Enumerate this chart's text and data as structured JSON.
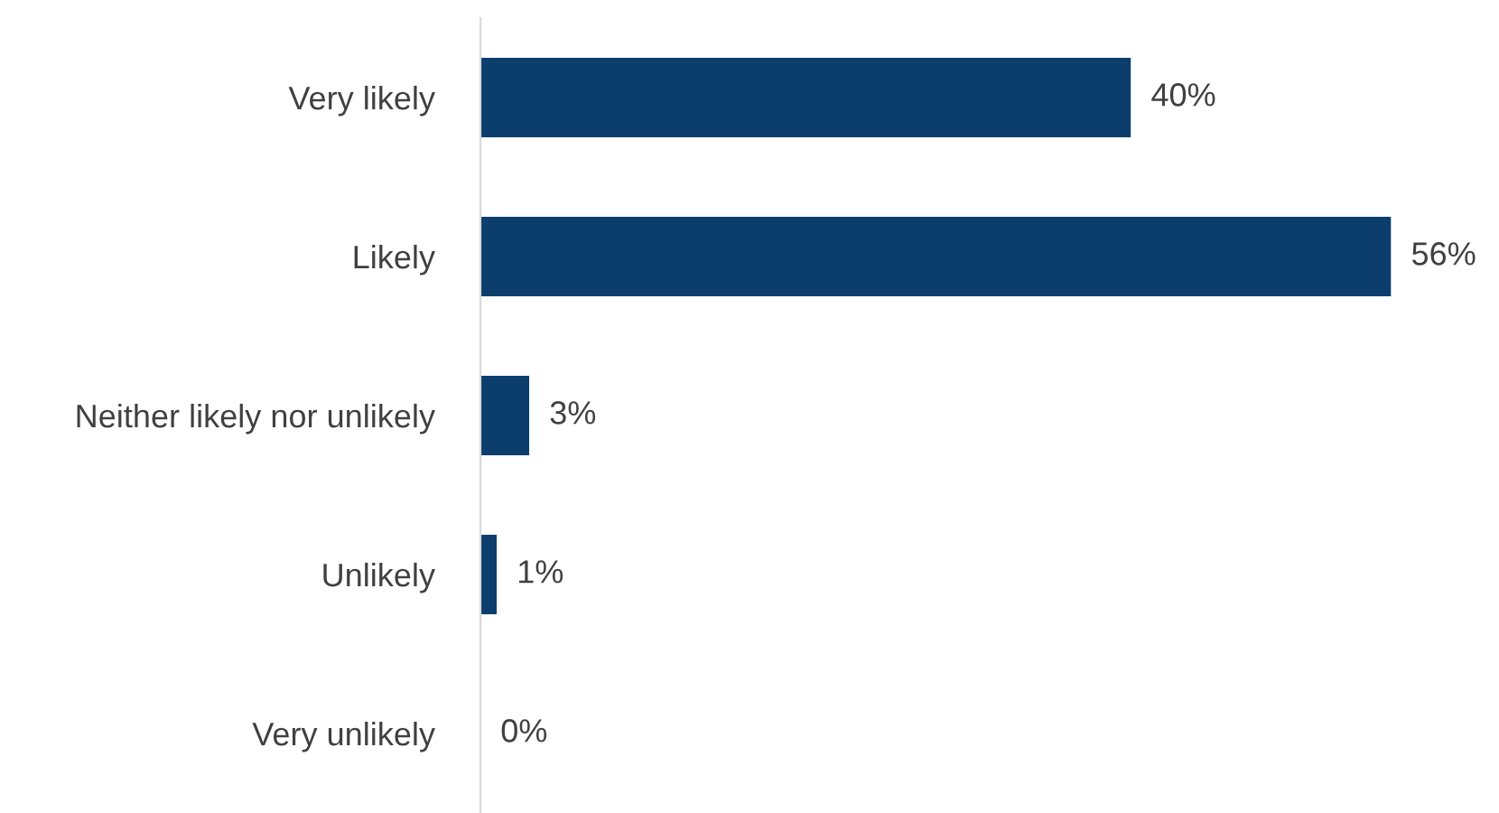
{
  "chart_data": {
    "type": "bar",
    "orientation": "horizontal",
    "categories": [
      "Very likely",
      "Likely",
      "Neither likely nor unlikely",
      "Unlikely",
      "Very unlikely"
    ],
    "values": [
      40,
      56,
      3,
      1,
      0
    ],
    "value_labels": [
      "40%",
      "56%",
      "3%",
      "1%",
      "0%"
    ],
    "color": "#0b3e6c",
    "grid": false
  }
}
